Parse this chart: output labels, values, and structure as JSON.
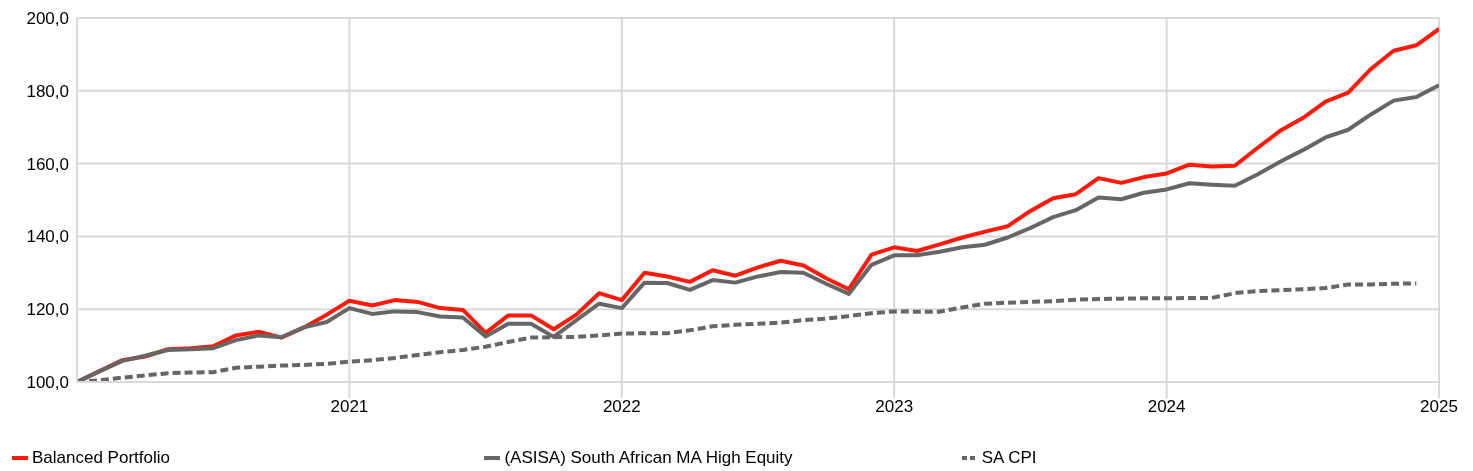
{
  "chart_data": {
    "type": "line",
    "x": [
      "2020-01",
      "2020-02",
      "2020-03",
      "2020-04",
      "2020-05",
      "2020-06",
      "2020-07",
      "2020-08",
      "2020-09",
      "2020-10",
      "2020-11",
      "2020-12",
      "2021-01",
      "2021-02",
      "2021-03",
      "2021-04",
      "2021-05",
      "2021-06",
      "2021-07",
      "2021-08",
      "2021-09",
      "2021-10",
      "2021-11",
      "2021-12",
      "2022-01",
      "2022-02",
      "2022-03",
      "2022-04",
      "2022-05",
      "2022-06",
      "2022-07",
      "2022-08",
      "2022-09",
      "2022-10",
      "2022-11",
      "2022-12",
      "2023-01",
      "2023-02",
      "2023-03",
      "2023-04",
      "2023-05",
      "2023-06",
      "2023-07",
      "2023-08",
      "2023-09",
      "2023-10",
      "2023-11",
      "2023-12",
      "2024-01",
      "2024-02",
      "2024-03",
      "2024-04",
      "2024-05",
      "2024-06",
      "2024-07",
      "2024-08",
      "2024-09",
      "2024-10",
      "2024-11",
      "2024-12",
      "2025-01"
    ],
    "series": [
      {
        "name": "Balanced Portfolio",
        "color": "#ff1a0a",
        "line_style": "solid",
        "values": [
          100,
          103,
          106,
          107,
          109,
          109.3,
          109.8,
          112.8,
          113.8,
          112.2,
          115,
          118.5,
          122.3,
          121,
          122.5,
          122,
          120.3,
          119.8,
          113.5,
          118.3,
          118.3,
          114.5,
          118.5,
          124.4,
          122.5,
          130,
          129,
          127.5,
          130.7,
          129.2,
          131.5,
          133.3,
          132,
          128.5,
          125.5,
          135,
          137,
          136,
          137.8,
          139.7,
          141.3,
          142.8,
          147,
          150.5,
          151.6,
          156,
          154.7,
          156.3,
          157.3,
          159.7,
          159.2,
          159.4,
          164.3,
          169,
          172.5,
          177,
          179.5,
          186,
          191,
          192.5,
          197
        ]
      },
      {
        "name": "(ASISA) South African MA High Equity",
        "color": "#666666",
        "line_style": "solid",
        "values": [
          100,
          103,
          105.8,
          107.2,
          108.8,
          109,
          109.3,
          111.5,
          112.8,
          112.3,
          115,
          116.5,
          120.3,
          118.7,
          119.4,
          119.2,
          118,
          117.7,
          112.5,
          116,
          116,
          112.4,
          117,
          121.5,
          120.3,
          127.3,
          127.2,
          125.3,
          128,
          127.3,
          129,
          130.2,
          130,
          127,
          124.2,
          132.2,
          134.8,
          134.8,
          135.8,
          137,
          137.7,
          139.7,
          142.3,
          145.3,
          147.2,
          150.7,
          150.2,
          152,
          152.9,
          154.6,
          154.2,
          153.9,
          157,
          160.5,
          163.7,
          167.2,
          169.3,
          173.5,
          177.3,
          178.3,
          181.5
        ]
      },
      {
        "name": "SA CPI",
        "color": "#666666",
        "line_style": "dashed",
        "values": [
          100,
          100.5,
          101.2,
          101.8,
          102.4,
          102.6,
          102.7,
          103.9,
          104.2,
          104.5,
          104.7,
          105,
          105.6,
          106,
          106.6,
          107.4,
          108.2,
          108.8,
          109.7,
          111,
          112.2,
          112.3,
          112.4,
          112.8,
          113.3,
          113.4,
          113.4,
          114.2,
          115.3,
          115.7,
          116,
          116.3,
          117,
          117.4,
          118.1,
          118.9,
          119.4,
          119.3,
          119.3,
          120.5,
          121.5,
          121.8,
          122,
          122.2,
          122.6,
          122.8,
          122.9,
          123,
          123,
          123.1,
          123.1,
          124.4,
          125,
          125.2,
          125.5,
          125.8,
          126.8,
          126.8,
          127,
          127.1,
          null
        ]
      }
    ],
    "xlim": [
      "2020-01",
      "2025-01"
    ],
    "xticks": [
      {
        "value": "2021-01",
        "label": "2021"
      },
      {
        "value": "2022-01",
        "label": "2022"
      },
      {
        "value": "2023-01",
        "label": "2023"
      },
      {
        "value": "2024-01",
        "label": "2024"
      },
      {
        "value": "2025-01",
        "label": "2025"
      }
    ],
    "ylim": [
      100,
      200
    ],
    "yticks": [
      {
        "value": 100,
        "label": "100,0"
      },
      {
        "value": 120,
        "label": "120,0"
      },
      {
        "value": 140,
        "label": "140,0"
      },
      {
        "value": 160,
        "label": "160,0"
      },
      {
        "value": 180,
        "label": "180,0"
      },
      {
        "value": 200,
        "label": "200,0"
      }
    ],
    "grid": true,
    "legend": "bottom",
    "marker": "none"
  }
}
